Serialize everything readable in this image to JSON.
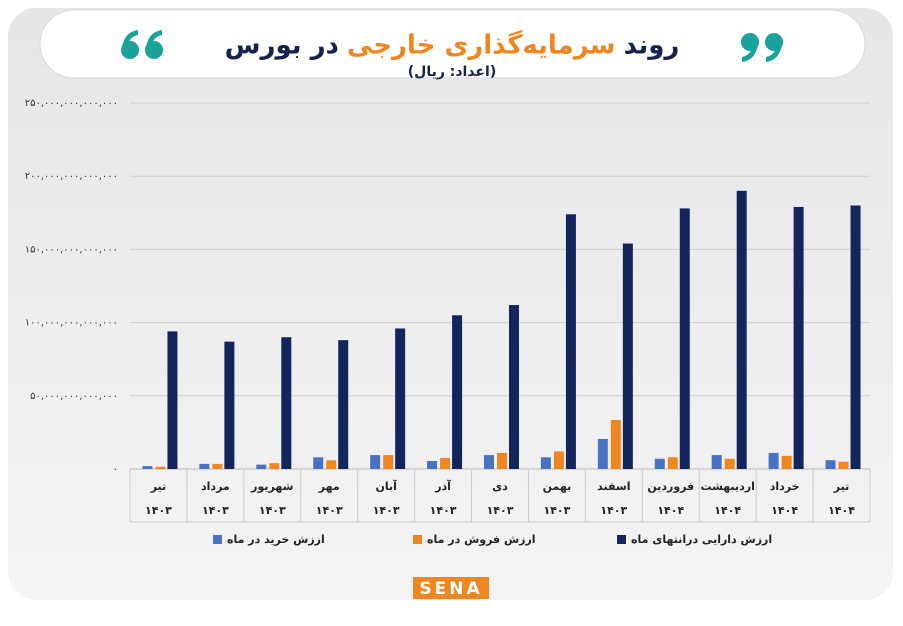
{
  "chart_data": {
    "type": "bar",
    "title": {
      "before": "روند",
      "highlight": "سرمایه‌گذاری خارجی",
      "after": "در بورس"
    },
    "subtitle": "(اعداد: ریال)",
    "categories": [
      "تیر",
      "مرداد",
      "شهریور",
      "مهر",
      "آبان",
      "آذر",
      "دی",
      "بهمن",
      "اسفند",
      "فروردین",
      "اردیبهشت",
      "خرداد",
      "تیر"
    ],
    "category_years": [
      "۱۴۰۳",
      "۱۴۰۳",
      "۱۴۰۳",
      "۱۴۰۳",
      "۱۴۰۳",
      "۱۴۰۳",
      "۱۴۰۳",
      "۱۴۰۳",
      "۱۴۰۳",
      "۱۴۰۴",
      "۱۴۰۴",
      "۱۴۰۴",
      "۱۴۰۴"
    ],
    "series": [
      {
        "name": "ارزش خرید در ماه",
        "color": "#4a72c4",
        "values": [
          2000000000000,
          3500000000000,
          3000000000000,
          8000000000000,
          9500000000000,
          5500000000000,
          9500000000000,
          8000000000000,
          20500000000000,
          7000000000000,
          9500000000000,
          11000000000000,
          6000000000000
        ]
      },
      {
        "name": "ارزش فروش در ماه",
        "color": "#f0861f",
        "values": [
          1500000000000,
          3500000000000,
          4000000000000,
          6000000000000,
          9500000000000,
          7500000000000,
          11000000000000,
          12000000000000,
          33500000000000,
          8000000000000,
          7000000000000,
          9000000000000,
          5000000000000
        ]
      },
      {
        "name": "ارزش دارایی درانتهای ماه",
        "color": "#14245c",
        "values": [
          94000000000000,
          87000000000000,
          90000000000000,
          88000000000000,
          96000000000000,
          105000000000000,
          112000000000000,
          174000000000000,
          154000000000000,
          178000000000000,
          190000000000000,
          179000000000000,
          180000000000000
        ]
      }
    ],
    "ylim": [
      0,
      250000000000000
    ],
    "yticks": [
      {
        "value": 0,
        "label": "۰"
      },
      {
        "value": 50000000000000,
        "label": "۵۰,۰۰۰,۰۰۰,۰۰۰,۰۰۰"
      },
      {
        "value": 100000000000000,
        "label": "۱۰۰,۰۰۰,۰۰۰,۰۰۰,۰۰۰"
      },
      {
        "value": 150000000000000,
        "label": "۱۵۰,۰۰۰,۰۰۰,۰۰۰,۰۰۰"
      },
      {
        "value": 200000000000000,
        "label": "۲۰۰,۰۰۰,۰۰۰,۰۰۰,۰۰۰"
      },
      {
        "value": 250000000000000,
        "label": "۲۵۰,۰۰۰,۰۰۰,۰۰۰,۰۰۰"
      }
    ],
    "grid": true,
    "logo": "SENA"
  }
}
